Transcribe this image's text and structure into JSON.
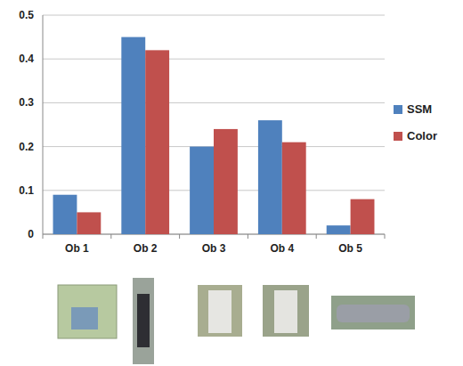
{
  "chart_data": {
    "type": "bar",
    "categories": [
      "Ob 1",
      "Ob 2",
      "Ob 3",
      "Ob 4",
      "Ob 5"
    ],
    "series": [
      {
        "name": "SSM",
        "color": "#4f81bd",
        "values": [
          0.09,
          0.45,
          0.2,
          0.26,
          0.02
        ]
      },
      {
        "name": "Color",
        "color": "#c0504d",
        "values": [
          0.05,
          0.42,
          0.24,
          0.21,
          0.08
        ]
      }
    ],
    "ylim": [
      0,
      0.5
    ],
    "yticks": [
      0,
      0.1,
      0.2,
      0.3,
      0.4,
      0.5
    ],
    "grid": true,
    "legend": "right"
  }
}
